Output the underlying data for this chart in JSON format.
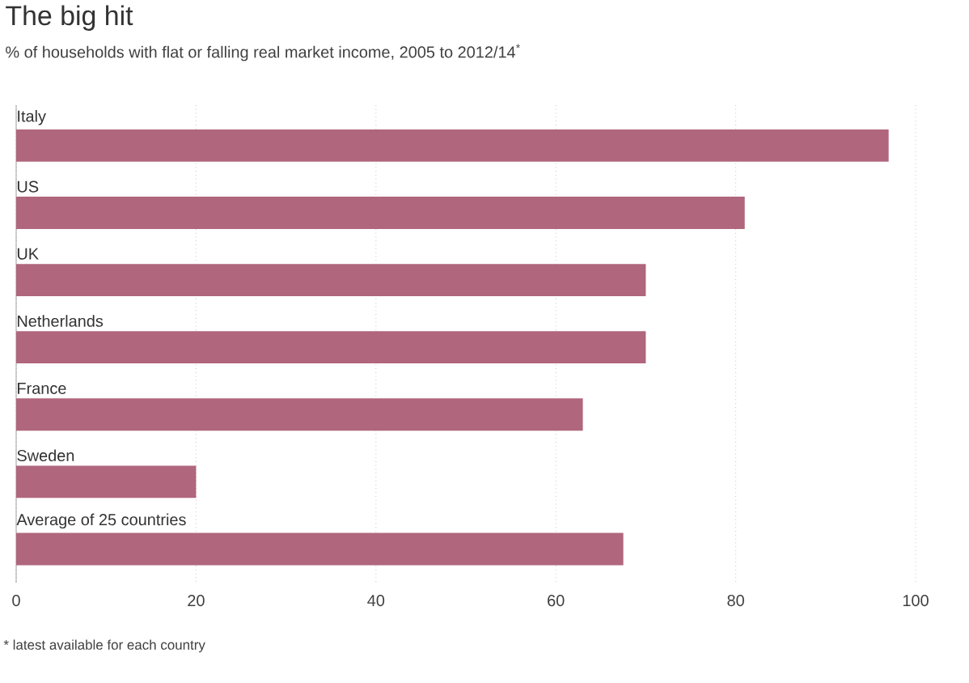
{
  "chart_data": {
    "type": "bar",
    "orientation": "horizontal",
    "title": "The big hit",
    "subtitle": "% of households with flat or falling real market income, 2005 to 2012/14$^{*}$",
    "categories": [
      "Italy",
      "US",
      "UK",
      "Netherlands",
      "France",
      "Sweden",
      "Average of 25 countries"
    ],
    "values": [
      97,
      81,
      70,
      70,
      63,
      20,
      67.5
    ],
    "color": "#b0667c",
    "xlim": [
      0,
      100
    ],
    "xticks": [
      0,
      20,
      40,
      60,
      80,
      100
    ],
    "grid": "x",
    "annotations": [
      "* latest available for each country"
    ]
  }
}
